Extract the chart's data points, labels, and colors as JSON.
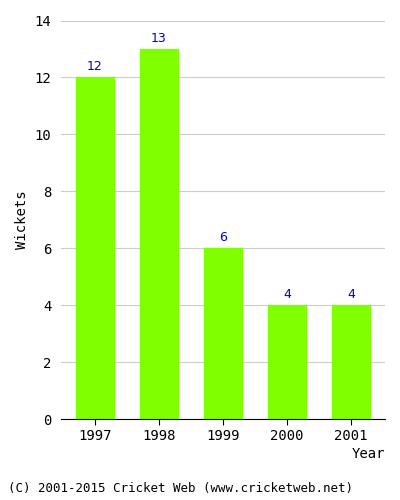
{
  "categories": [
    "1997",
    "1998",
    "1999",
    "2000",
    "2001"
  ],
  "values": [
    12,
    13,
    6,
    4,
    4
  ],
  "bar_color": "#7fff00",
  "bar_edgecolor": "#7fff00",
  "label_color": "#0000cc",
  "ylabel": "Wickets",
  "ylim": [
    0,
    14
  ],
  "yticks": [
    0,
    2,
    4,
    6,
    8,
    10,
    12,
    14
  ],
  "grid_color": "#cccccc",
  "background_color": "#ffffff",
  "footer_text": "(C) 2001-2015 Cricket Web (www.cricketweb.net)",
  "label_fontsize": 9,
  "axis_fontsize": 10,
  "ylabel_fontsize": 10,
  "footer_fontsize": 9
}
